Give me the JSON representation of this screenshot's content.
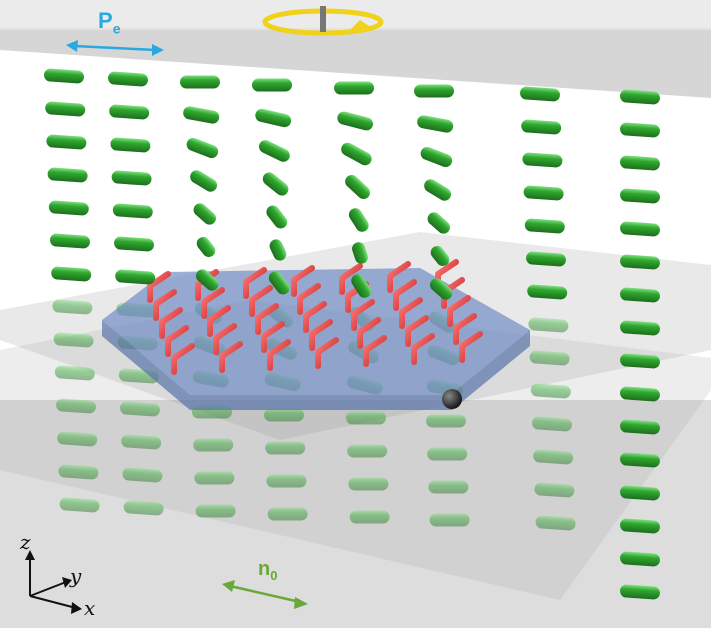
{
  "labels": {
    "pe_main": "P",
    "pe_sub": "e",
    "n0_main": "n",
    "n0_sub": "0",
    "axis_z": "z",
    "axis_y": "y",
    "axis_x": "x"
  },
  "colors": {
    "pe": "#2aa8e0",
    "n0": "#6aa83a",
    "lc_rod": "#2e9d2e",
    "lc_rod_highlight": "#6fd46f",
    "red_molecule": "#e23a3a",
    "platelet": "#6b84b8",
    "glass_plate": "#d4d4d4",
    "rotation_arrow": "#f0d21a",
    "particle": "#222222"
  },
  "icons": {
    "rotation": "rotation-arrow-icon",
    "pe_arrow": "double-arrow-icon",
    "n0_arrow": "double-arrow-icon",
    "axes": "coordinate-axes-icon"
  }
}
